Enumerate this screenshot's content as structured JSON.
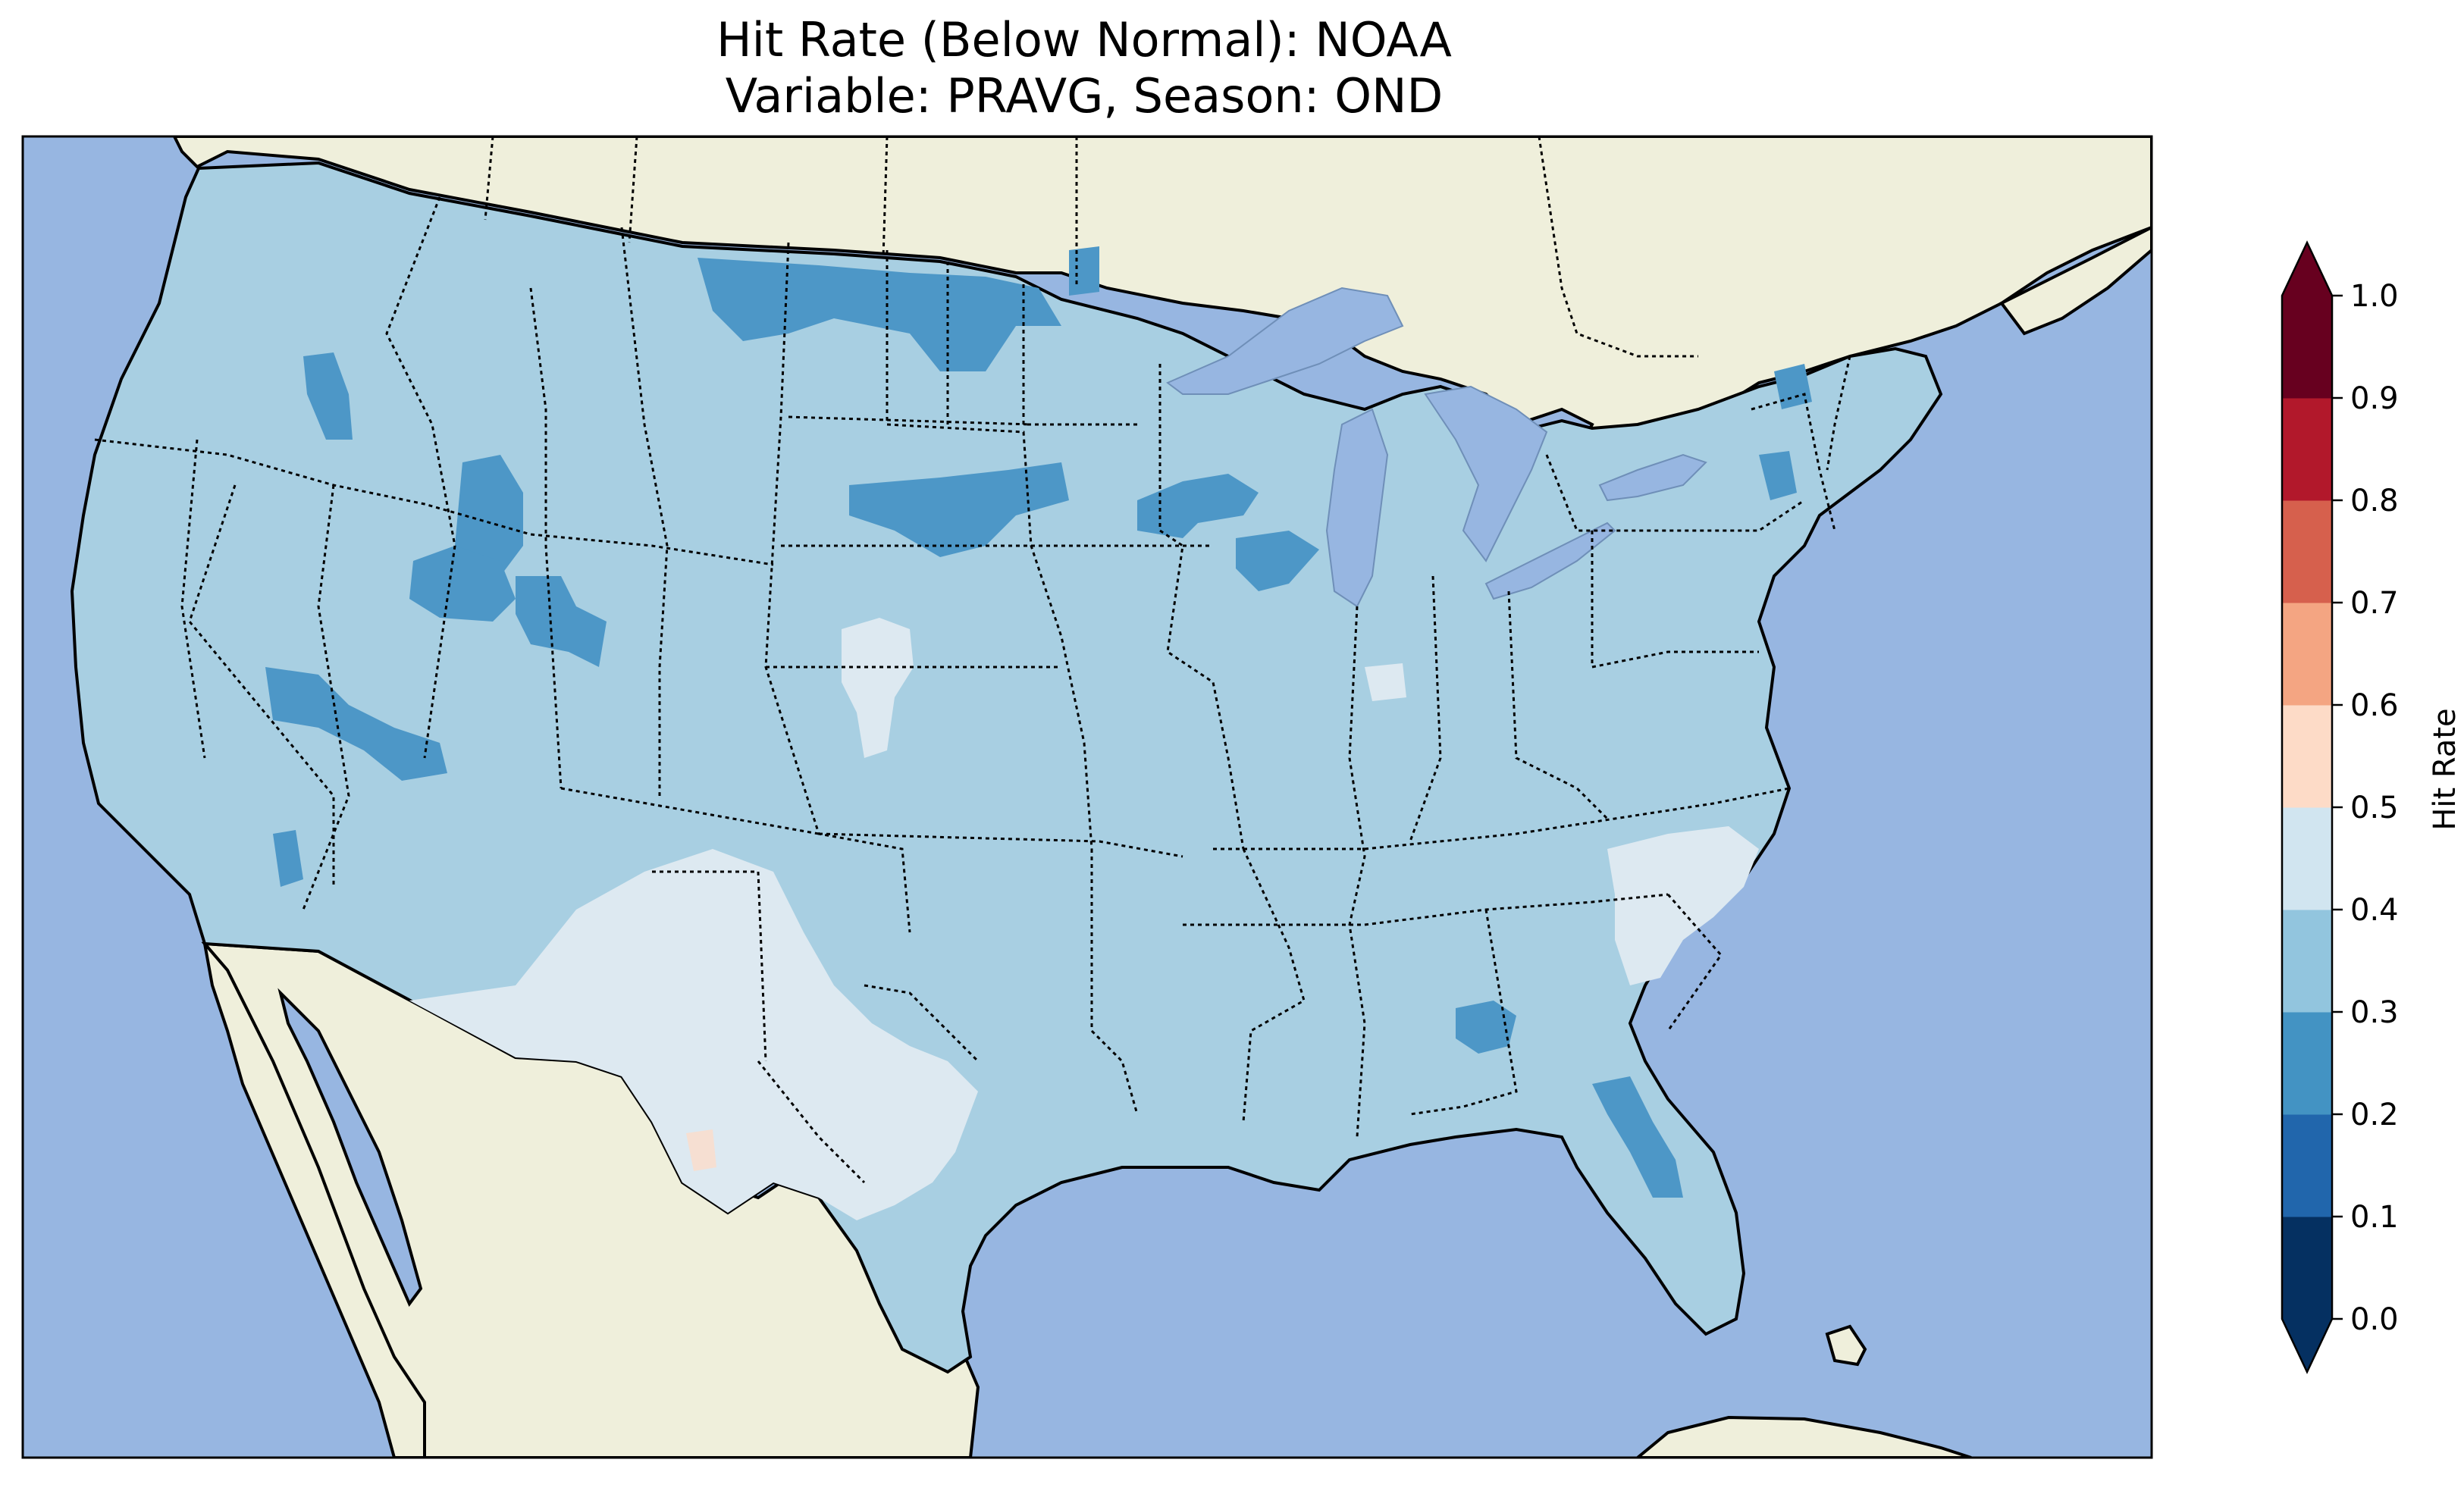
{
  "title_line1": "Hit Rate (Below Normal): NOAA",
  "title_line2": "Variable: PRAVG, Season: OND",
  "colorbar": {
    "label": "Hit Rate",
    "ticks": [
      "0.0",
      "0.1",
      "0.2",
      "0.3",
      "0.4",
      "0.5",
      "0.6",
      "0.7",
      "0.8",
      "0.9",
      "1.0"
    ],
    "bins": [
      {
        "range": [
          0.0,
          0.1
        ],
        "color": "#053061"
      },
      {
        "range": [
          0.1,
          0.2
        ],
        "color": "#2166ac"
      },
      {
        "range": [
          0.2,
          0.3
        ],
        "color": "#4393c3"
      },
      {
        "range": [
          0.3,
          0.4
        ],
        "color": "#92c5de"
      },
      {
        "range": [
          0.4,
          0.5
        ],
        "color": "#d1e5f0"
      },
      {
        "range": [
          0.5,
          0.6
        ],
        "color": "#fddbc7"
      },
      {
        "range": [
          0.6,
          0.7
        ],
        "color": "#f4a582"
      },
      {
        "range": [
          0.7,
          0.8
        ],
        "color": "#d6604d"
      },
      {
        "range": [
          0.8,
          0.9
        ],
        "color": "#b2182b"
      },
      {
        "range": [
          0.9,
          1.0
        ],
        "color": "#67001f"
      }
    ],
    "extend": "both"
  },
  "map": {
    "region": "Contiguous United States",
    "ocean_color": "#97b6e1",
    "land_color": "#efefdb",
    "dominant_value_range": [
      0.3,
      0.4
    ],
    "areas_0_2_to_0_3": [
      "Montana–Canada border",
      "Idaho/Oregon",
      "Nevada",
      "South Dakota",
      "Minnesota/Wisconsin",
      "Georgia",
      "Florida",
      "Vermont/New York"
    ],
    "areas_0_4_to_0_5": [
      "New Mexico/West Texas",
      "Southern Arizona",
      "Eastern Colorado",
      "South Carolina",
      "Central Indiana"
    ],
    "areas_0_5_to_0_6": [
      "West Texas (small patch)"
    ]
  }
}
